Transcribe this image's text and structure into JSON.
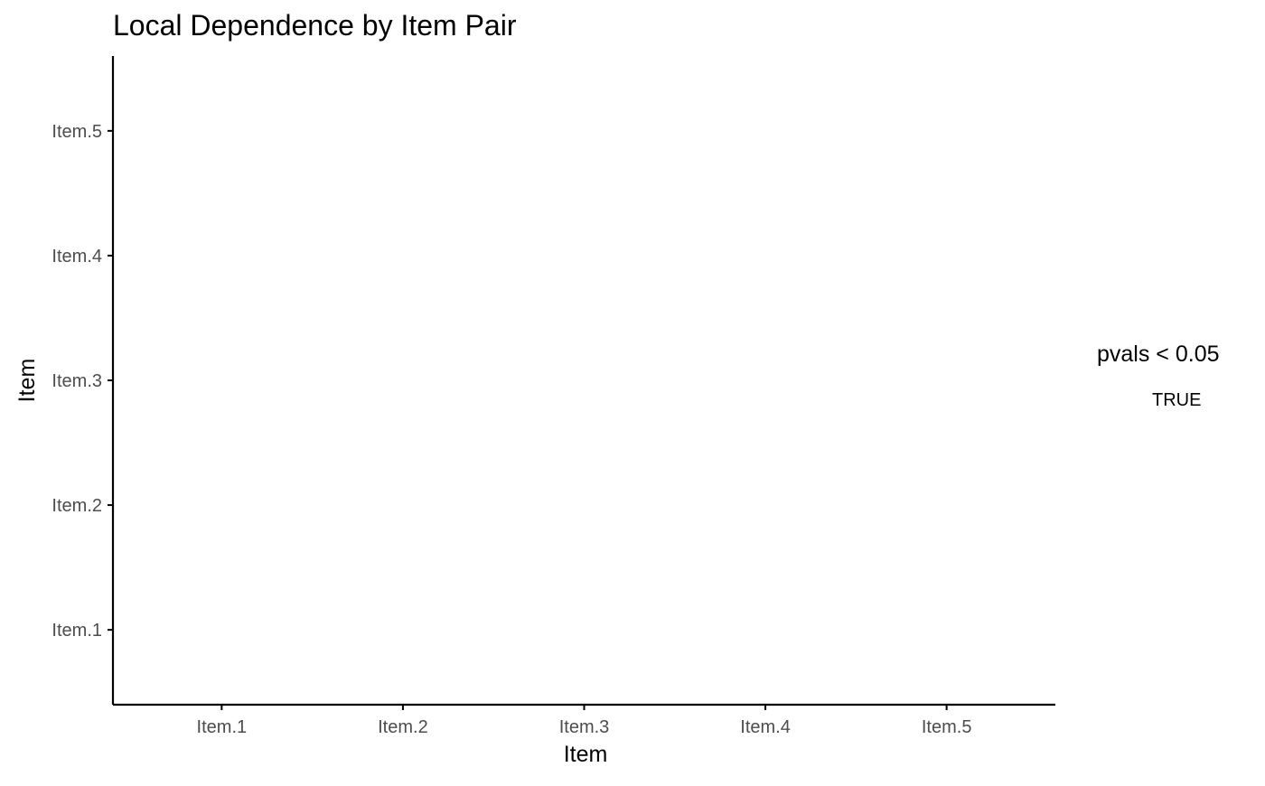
{
  "chart_data": {
    "type": "heatmap",
    "title": "Local Dependence by Item Pair",
    "xlabel": "Item",
    "ylabel": "Item",
    "x_categories": [
      "Item.1",
      "Item.2",
      "Item.3",
      "Item.4",
      "Item.5"
    ],
    "y_categories": [
      "Item.1",
      "Item.2",
      "Item.3",
      "Item.4",
      "Item.5"
    ],
    "cells": [],
    "grid": false,
    "legend": {
      "title": "pvals < 0.05",
      "entries": [
        "TRUE"
      ],
      "placement": "right"
    },
    "colors": {
      "background": "#ffffff",
      "axis_line": "#000000",
      "tick_label": "#4d4d4d"
    }
  }
}
